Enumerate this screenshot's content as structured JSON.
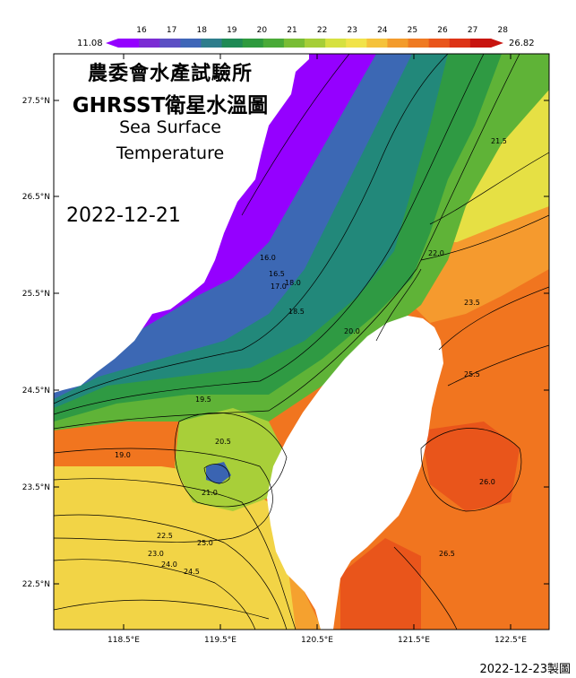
{
  "title": {
    "line1": "農委會水產試驗所",
    "line2": "GHRSST衛星水溫圖",
    "line3": "Sea Surface",
    "line4": "Temperature"
  },
  "date": "2022-12-21",
  "footer": "2022-12-23製圖",
  "colorbar": {
    "min_label": "11.08",
    "max_label": "26.82",
    "ticks": [
      "16",
      "17",
      "18",
      "19",
      "20",
      "21",
      "22",
      "23",
      "24",
      "25",
      "26",
      "27",
      "28"
    ],
    "colors": [
      "#9400ff",
      "#7b2cd4",
      "#5c4fc4",
      "#3f66b8",
      "#2e7d8c",
      "#1f8a55",
      "#2e9a3e",
      "#4aaa38",
      "#79bd35",
      "#a6ce38",
      "#d6e140",
      "#f1e34a",
      "#f5c23b",
      "#f39b2c",
      "#ef7a22",
      "#e9551b",
      "#dd3316",
      "#c8140f"
    ]
  },
  "map": {
    "lat_labels": [
      "27.5°N",
      "26.5°N",
      "25.5°N",
      "24.5°N",
      "23.5°N",
      "22.5°N"
    ],
    "lon_labels": [
      "118.5°E",
      "119.5°E",
      "120.5°E",
      "121.5°E",
      "122.5°E"
    ],
    "contour_labels": [
      "16.0",
      "16.5",
      "17.0",
      "18.0",
      "18.5",
      "19.0",
      "19.5",
      "20.0",
      "20.5",
      "21.0",
      "21.5",
      "22.0",
      "22.5",
      "23.0",
      "23.5",
      "24.0",
      "24.5",
      "25.0",
      "25.5",
      "26.0",
      "26.5"
    ]
  }
}
